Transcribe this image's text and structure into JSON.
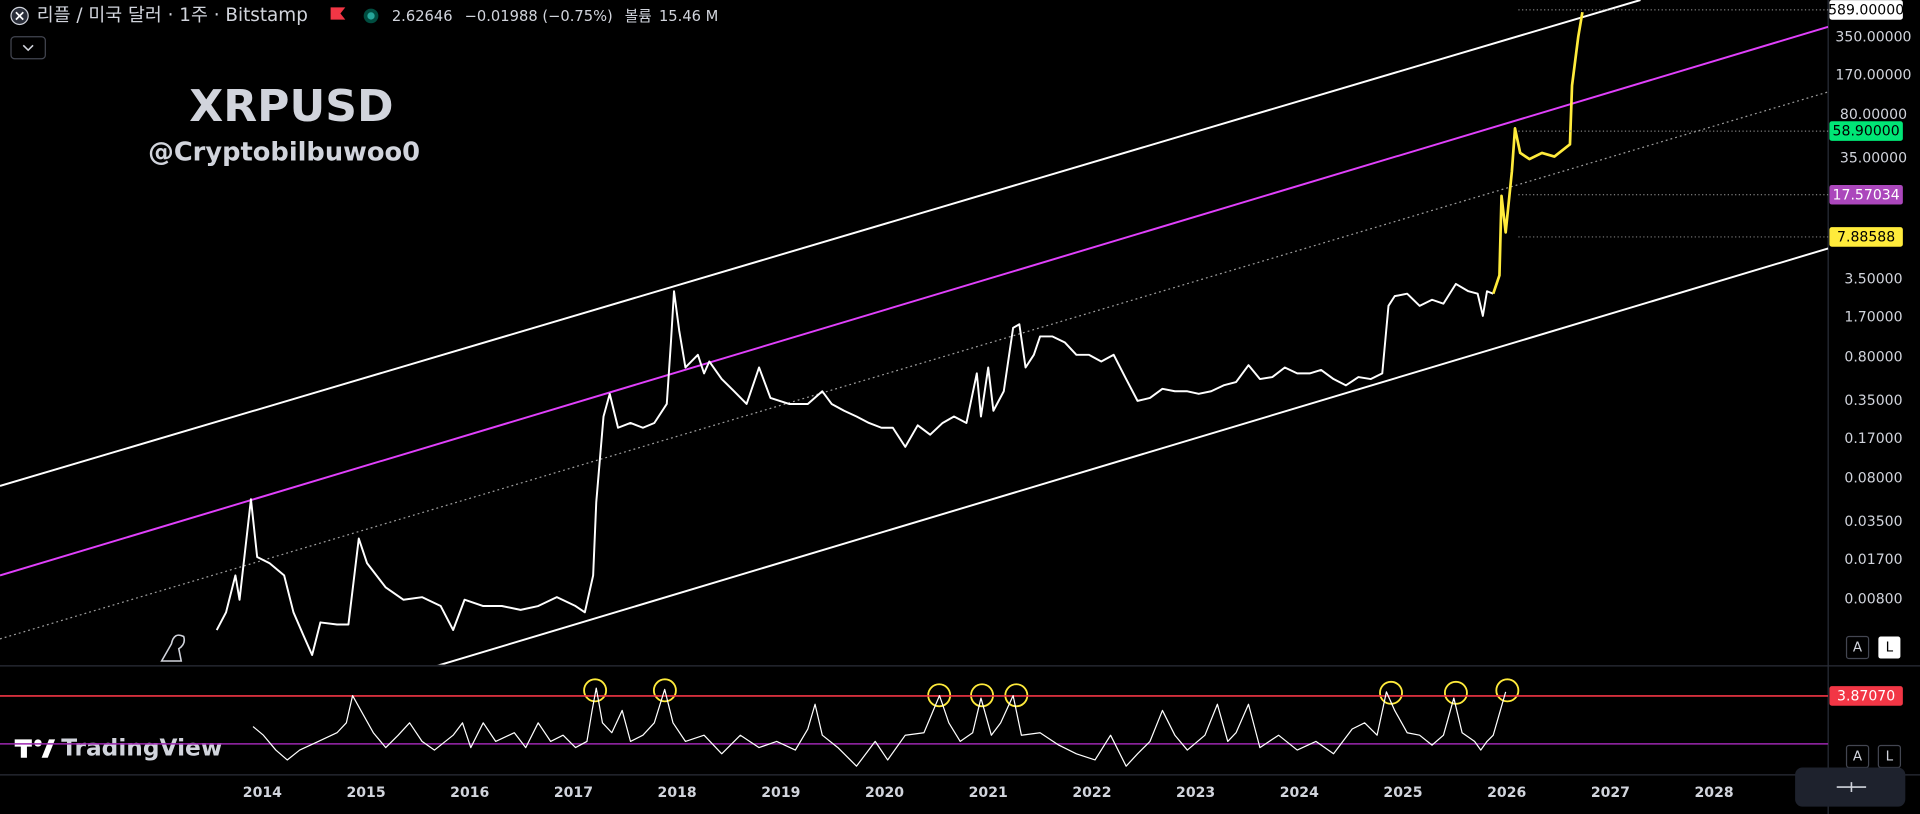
{
  "header": {
    "symbol": "리플 / 미국 달러 · 1주 · Bitstamp",
    "price": "2.62646",
    "change": "−0.01988 (−0.75%)",
    "volume_label": "볼륨",
    "volume": "15.46 M"
  },
  "branding": "TradingView",
  "buttons": [
    "A",
    "L",
    "A",
    "L"
  ],
  "chart_data": [
    {
      "type": "line",
      "title": "XRPUSD",
      "subtitle": "@Cryptobilbuwoo0",
      "log_scale": true,
      "xlim": [
        2011.47,
        2029.1
      ],
      "ylim": [
        0.00233,
        711
      ],
      "xticks": [
        2014,
        2015,
        2016,
        2017,
        2018,
        2019,
        2020,
        2021,
        2022,
        2023,
        2024,
        2025,
        2026,
        2027,
        2028
      ],
      "yticks": [
        {
          "value": 350,
          "label": "350.00000"
        },
        {
          "value": 170,
          "label": "170.00000"
        },
        {
          "value": 80,
          "label": "80.00000"
        },
        {
          "value": 35,
          "label": "35.00000"
        },
        {
          "value": 3.5,
          "label": "3.50000"
        },
        {
          "value": 1.7,
          "label": "1.70000"
        },
        {
          "value": 0.8,
          "label": "0.80000"
        },
        {
          "value": 0.35,
          "label": "0.35000"
        },
        {
          "value": 0.17,
          "label": "0.17000"
        },
        {
          "value": 0.08,
          "label": "0.08000"
        },
        {
          "value": 0.035,
          "label": "0.03500"
        },
        {
          "value": 0.017,
          "label": "0.01700"
        },
        {
          "value": 0.008,
          "label": "0.00800"
        }
      ],
      "series": [
        {
          "color": "#ffffff",
          "x": [
            2013.56,
            2013.65,
            2013.74,
            2013.78,
            2013.89,
            2013.95,
            2014.07,
            2014.21,
            2014.3,
            2014.4,
            2014.48,
            2014.56,
            2014.72,
            2014.83,
            2014.93,
            2015.01,
            2015.19,
            2015.36,
            2015.54,
            2015.72,
            2015.84,
            2015.95,
            2016.13,
            2016.31,
            2016.49,
            2016.66,
            2016.84,
            2017.02,
            2017.11,
            2017.19,
            2017.22,
            2017.29,
            2017.35,
            2017.43,
            2017.55,
            2017.67,
            2017.78,
            2017.9,
            2017.94,
            2017.97,
            2018.02,
            2018.08,
            2018.2,
            2018.26,
            2018.31,
            2018.43,
            2018.55,
            2018.67,
            2018.79,
            2018.9,
            2019.08,
            2019.26,
            2019.4,
            2019.49,
            2019.61,
            2019.73,
            2019.85,
            2019.97,
            2020.08,
            2020.2,
            2020.32,
            2020.44,
            2020.56,
            2020.67,
            2020.79,
            2020.89,
            2020.93,
            2021.0,
            2021.05,
            2021.15,
            2021.24,
            2021.3,
            2021.36,
            2021.44,
            2021.5,
            2021.62,
            2021.74,
            2021.85,
            2021.97,
            2022.09,
            2022.21,
            2022.33,
            2022.44,
            2022.56,
            2022.68,
            2022.8,
            2022.92,
            2023.03,
            2023.15,
            2023.27,
            2023.39,
            2023.51,
            2023.62,
            2023.74,
            2023.86,
            2023.98,
            2024.1,
            2024.21,
            2024.33,
            2024.45,
            2024.57,
            2024.69,
            2024.8,
            2024.86,
            2024.92,
            2025.04,
            2025.16,
            2025.28,
            2025.39,
            2025.51,
            2025.63,
            2025.72,
            2025.77,
            2025.81,
            2025.87
          ],
          "values": [
            0.0045,
            0.0063,
            0.0127,
            0.008,
            0.054,
            0.018,
            0.016,
            0.0127,
            0.0063,
            0.004,
            0.0028,
            0.0052,
            0.005,
            0.005,
            0.0256,
            0.016,
            0.0101,
            0.008,
            0.0084,
            0.0071,
            0.0045,
            0.008,
            0.0071,
            0.0071,
            0.0066,
            0.0071,
            0.0084,
            0.0071,
            0.0063,
            0.0127,
            0.051,
            0.26,
            0.4,
            0.21,
            0.23,
            0.21,
            0.23,
            0.33,
            1.06,
            2.81,
            1.33,
            0.66,
            0.84,
            0.59,
            0.74,
            0.53,
            0.42,
            0.33,
            0.66,
            0.37,
            0.33,
            0.33,
            0.42,
            0.33,
            0.29,
            0.26,
            0.23,
            0.21,
            0.21,
            0.146,
            0.22,
            0.184,
            0.23,
            0.26,
            0.23,
            0.59,
            0.26,
            0.66,
            0.29,
            0.42,
            1.4,
            1.5,
            0.66,
            0.84,
            1.19,
            1.19,
            1.06,
            0.84,
            0.84,
            0.74,
            0.84,
            0.53,
            0.35,
            0.37,
            0.44,
            0.42,
            0.42,
            0.4,
            0.42,
            0.47,
            0.5,
            0.69,
            0.53,
            0.55,
            0.66,
            0.59,
            0.59,
            0.63,
            0.53,
            0.47,
            0.55,
            0.53,
            0.59,
            2.13,
            2.56,
            2.68,
            2.13,
            2.39,
            2.22,
            3.23,
            2.81,
            2.68,
            1.76,
            2.81,
            2.68
          ]
        },
        {
          "color": "#ffeb3b",
          "x": [
            2025.87,
            2025.93,
            2025.95,
            2025.99,
            2026.05,
            2026.08,
            2026.13,
            2026.22,
            2026.34,
            2026.46,
            2026.61,
            2026.63,
            2026.69,
            2026.73
          ],
          "values": [
            2.68,
            3.8,
            17.2,
            8.6,
            27.4,
            62,
            38.9,
            34.6,
            38.9,
            36.3,
            45.8,
            140,
            354,
            564
          ]
        }
      ],
      "trendlines": [
        {
          "color": "#ffffff",
          "style": "solid",
          "x": [
            2011.47,
            2027.29
          ],
          "values": [
            0.0695,
            711
          ]
        },
        {
          "color": "#e040fb",
          "style": "solid",
          "x": [
            2011.47,
            2029.1
          ],
          "values": [
            0.0127,
            427
          ]
        },
        {
          "color": "#9e9e9e",
          "style": "dotted",
          "x": [
            2011.47,
            2029.1
          ],
          "values": [
            0.0038,
            124
          ]
        },
        {
          "color": "#ffffff",
          "style": "solid",
          "x": [
            2015.685,
            2029.1
          ],
          "values": [
            0.00228,
            6.34
          ]
        }
      ],
      "price_levels": [
        {
          "value": 589,
          "label": "589.00000",
          "color": "#ffffff",
          "text_color": "#000000"
        },
        {
          "value": 58.9,
          "label": "58.90000",
          "color": "#00e676",
          "text_color": "#000000"
        },
        {
          "value": 17.57034,
          "label": "17.57034",
          "color": "#ab47bc",
          "text_color": "#ffffff"
        },
        {
          "value": 7.88588,
          "label": "7.88588",
          "color": "#ffeb3b",
          "text_color": "#000000"
        }
      ]
    },
    {
      "type": "line",
      "xlim": [
        2011.47,
        2029.1
      ],
      "ylim": [
        -2.5,
        6.2
      ],
      "series": [
        {
          "color": "#ffffff",
          "x": [
            2013.91,
            2014.01,
            2014.13,
            2014.24,
            2014.36,
            2014.54,
            2014.72,
            2014.81,
            2014.87,
            2014.95,
            2015.07,
            2015.19,
            2015.31,
            2015.42,
            2015.54,
            2015.66,
            2015.84,
            2015.93,
            2016.01,
            2016.13,
            2016.25,
            2016.43,
            2016.54,
            2016.66,
            2016.78,
            2016.9,
            2017.02,
            2017.13,
            2017.18,
            2017.22,
            2017.28,
            2017.37,
            2017.47,
            2017.55,
            2017.67,
            2017.78,
            2017.88,
            2017.96,
            2018.08,
            2018.26,
            2018.43,
            2018.61,
            2018.79,
            2018.96,
            2019.14,
            2019.26,
            2019.33,
            2019.4,
            2019.55,
            2019.73,
            2019.91,
            2020.03,
            2020.2,
            2020.38,
            2020.53,
            2020.62,
            2020.73,
            2020.85,
            2020.93,
            2021.03,
            2021.12,
            2021.24,
            2021.32,
            2021.5,
            2021.68,
            2021.85,
            2022.03,
            2022.18,
            2022.33,
            2022.44,
            2022.56,
            2022.68,
            2022.8,
            2022.92,
            2023.09,
            2023.21,
            2023.31,
            2023.39,
            2023.51,
            2023.62,
            2023.8,
            2023.98,
            2024.16,
            2024.33,
            2024.51,
            2024.63,
            2024.75,
            2024.84,
            2024.92,
            2025.04,
            2025.16,
            2025.28,
            2025.39,
            2025.49,
            2025.57,
            2025.69,
            2025.75,
            2025.81,
            2025.87,
            2025.99
          ],
          "values": [
            1.4,
            0.7,
            -0.5,
            -1.3,
            -0.5,
            0.2,
            0.9,
            1.7,
            3.9,
            2.7,
            0.9,
            -0.3,
            0.7,
            1.7,
            0.2,
            -0.5,
            0.7,
            1.7,
            -0.3,
            1.7,
            0.2,
            0.9,
            -0.3,
            1.7,
            0.2,
            0.7,
            -0.3,
            0.2,
            2.7,
            4.5,
            1.7,
            0.9,
            2.7,
            0.2,
            0.7,
            1.7,
            4.4,
            1.7,
            0.2,
            0.7,
            -0.8,
            0.7,
            -0.3,
            0.2,
            -0.5,
            1.2,
            3.2,
            0.7,
            -0.3,
            -1.8,
            0.2,
            -1.3,
            0.7,
            0.9,
            3.9,
            1.7,
            0.2,
            0.9,
            3.7,
            0.7,
            1.7,
            3.9,
            0.7,
            0.9,
            -0.1,
            -0.8,
            -1.3,
            0.7,
            -1.8,
            -0.8,
            0.2,
            2.7,
            0.7,
            -0.5,
            0.7,
            3.2,
            0.2,
            0.9,
            3.2,
            -0.3,
            0.7,
            -0.5,
            0.2,
            -0.8,
            1.2,
            1.7,
            0.7,
            4.2,
            2.7,
            0.9,
            0.7,
            -0.1,
            0.7,
            3.7,
            0.9,
            0.2,
            -0.5,
            0.2,
            0.7,
            4.2
          ]
        }
      ],
      "hlines": [
        {
          "value": 3.8707,
          "label": "3.87070",
          "color": "#f23645",
          "text_color": "#ffffff"
        },
        {
          "value": 0,
          "color": "#9c27b0"
        }
      ]
    }
  ]
}
